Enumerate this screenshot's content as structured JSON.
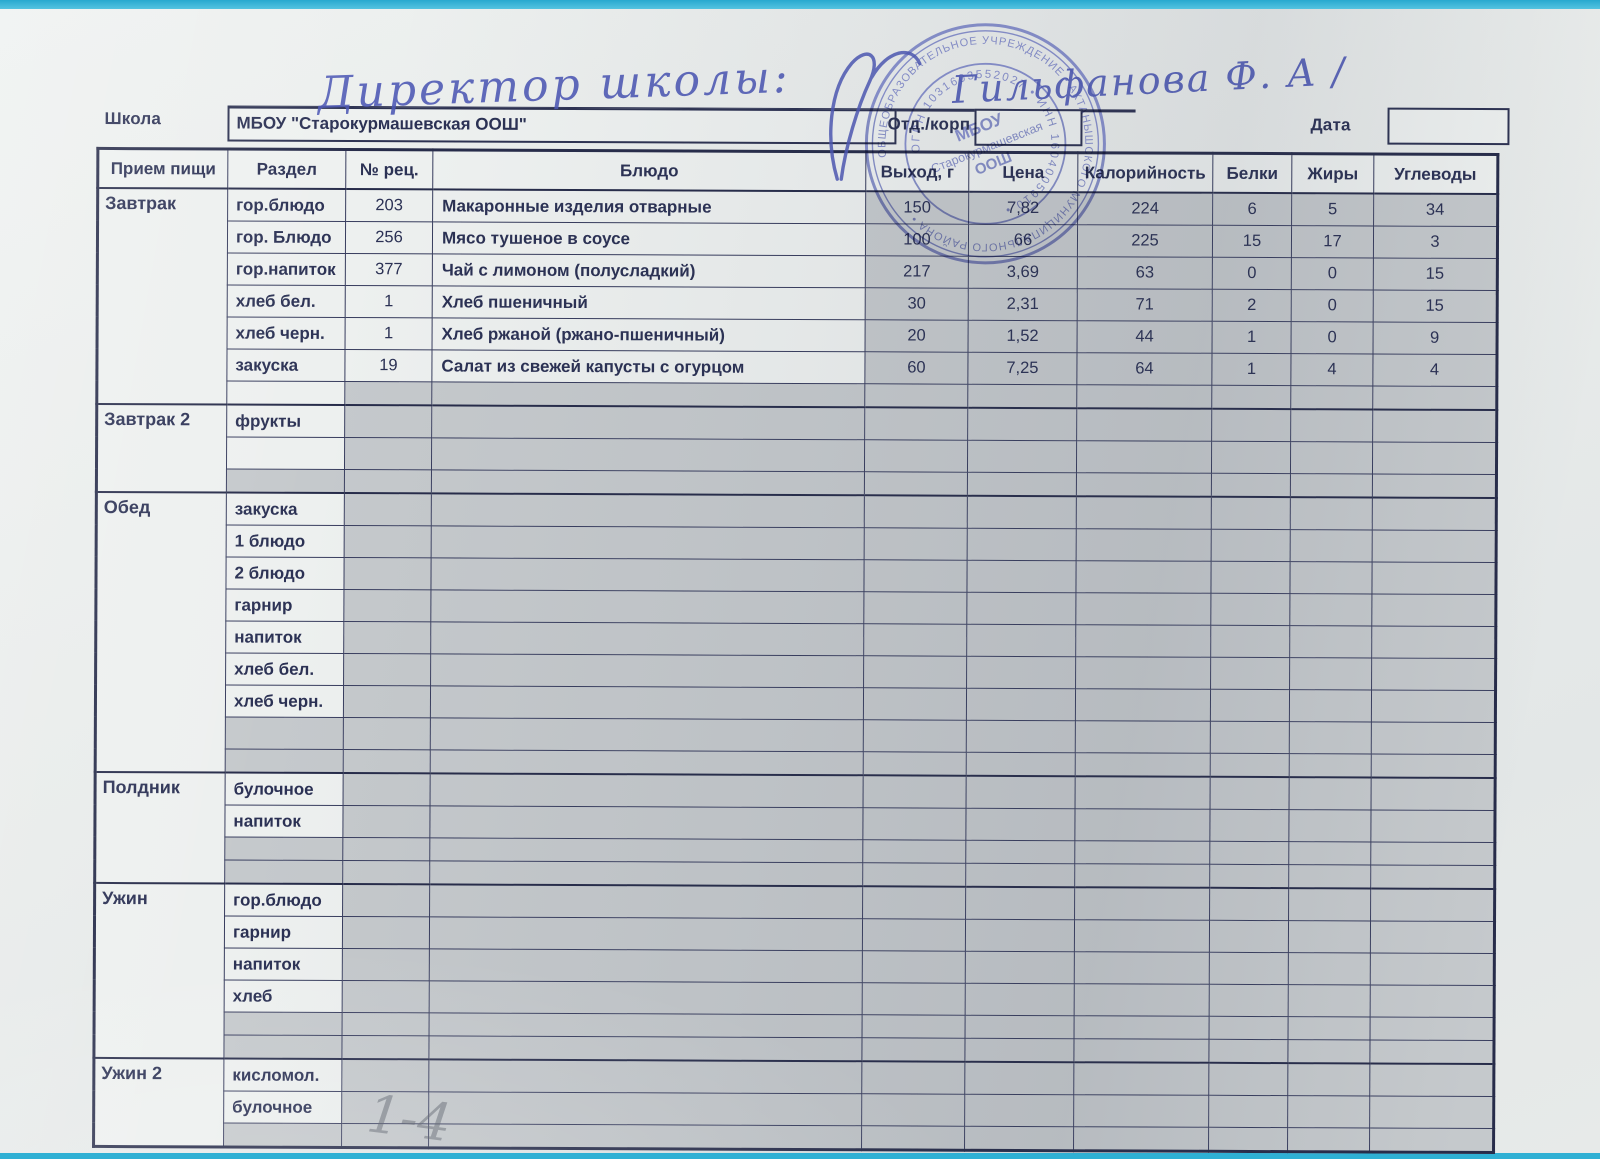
{
  "form": {
    "school_label": "Школа",
    "school_value": "МБОУ \"Старокурмашевская ООШ\"",
    "dept_label": "Отд./корп",
    "dept_value": "",
    "date_label": "Дата",
    "date_value": ""
  },
  "handwriting": {
    "title": "Директор школы:",
    "signature": "Гильфанова Ф. А /",
    "pencil_note": "1-4"
  },
  "stamp": {
    "ring_outer": "ОБЩЕОБРАЗОВАТЕЛЬНОЕ УЧРЕЖДЕНИЕ • АКТАНЫШСКОГО МУНИЦИПАЛЬНОГО РАЙОНА •",
    "ring_inner": "ОГРН 1031603552027  •  ИНН 1604005910  •",
    "center_line1": "МБОУ",
    "center_line2": "Старокурмашевская",
    "center_line3": "ООШ"
  },
  "table": {
    "columns": [
      "Прием пищи",
      "Раздел",
      "№ рец.",
      "Блюдо",
      "Выход, г",
      "Цена",
      "Калорийность",
      "Белки",
      "Жиры",
      "Углеводы"
    ],
    "sections": [
      {
        "meal": "Завтрак",
        "rows": [
          {
            "razdel": "гор.блюдо",
            "rec": "203",
            "dish": "Макаронные изделия отварные",
            "out": "150",
            "price": "7,82",
            "kcal": "224",
            "prot": "6",
            "fat": "5",
            "carb": "34"
          },
          {
            "razdel": "гор. Блюдо",
            "rec": "256",
            "dish": "Мясо тушеное в соусе",
            "out": "100",
            "price": "66",
            "kcal": "225",
            "prot": "15",
            "fat": "17",
            "carb": "3"
          },
          {
            "razdel": "гор.напиток",
            "rec": "377",
            "dish": "Чай с лимоном (полусладкий)",
            "out": "217",
            "price": "3,69",
            "kcal": "63",
            "prot": "0",
            "fat": "0",
            "carb": "15"
          },
          {
            "razdel": "хлеб бел.",
            "rec": "1",
            "dish": "Хлеб пшеничный",
            "out": "30",
            "price": "2,31",
            "kcal": "71",
            "prot": "2",
            "fat": "0",
            "carb": "15"
          },
          {
            "razdel": "хлеб черн.",
            "rec": "1",
            "dish": "Хлеб ржаной (ржано-пшеничный)",
            "out": "20",
            "price": "1,52",
            "kcal": "44",
            "prot": "1",
            "fat": "0",
            "carb": "9"
          },
          {
            "razdel": "закуска",
            "rec": "19",
            "dish": "Салат из свежей капусты с огурцом",
            "out": "60",
            "price": "7,25",
            "kcal": "64",
            "prot": "1",
            "fat": "4",
            "carb": "4"
          },
          {
            "thin": true,
            "white": true
          }
        ]
      },
      {
        "meal": "Завтрак 2",
        "rows": [
          {
            "razdel": "фрукты"
          },
          {
            "white": true
          },
          {
            "thin": true
          }
        ]
      },
      {
        "meal": "Обед",
        "rows": [
          {
            "razdel": "закуска"
          },
          {
            "razdel": "1 блюдо"
          },
          {
            "razdel": "2 блюдо"
          },
          {
            "razdel": "гарнир"
          },
          {
            "razdel": "напиток"
          },
          {
            "razdel": "хлеб бел."
          },
          {
            "razdel": "хлеб черн."
          },
          {},
          {
            "thin": true
          }
        ]
      },
      {
        "meal": "Полдник",
        "rows": [
          {
            "razdel": "булочное"
          },
          {
            "razdel": "напиток"
          },
          {
            "thin": true
          },
          {
            "thin": true
          }
        ]
      },
      {
        "meal": "Ужин",
        "rows": [
          {
            "razdel": "гор.блюдо"
          },
          {
            "razdel": "гарнир"
          },
          {
            "razdel": "напиток"
          },
          {
            "razdel": "хлеб"
          },
          {
            "thin": true
          },
          {
            "thin": true
          }
        ]
      },
      {
        "meal": "Ужин 2",
        "rows": [
          {
            "razdel": "кисломол."
          },
          {
            "razdel": "булочное"
          },
          {
            "thin": true
          }
        ]
      }
    ]
  }
}
